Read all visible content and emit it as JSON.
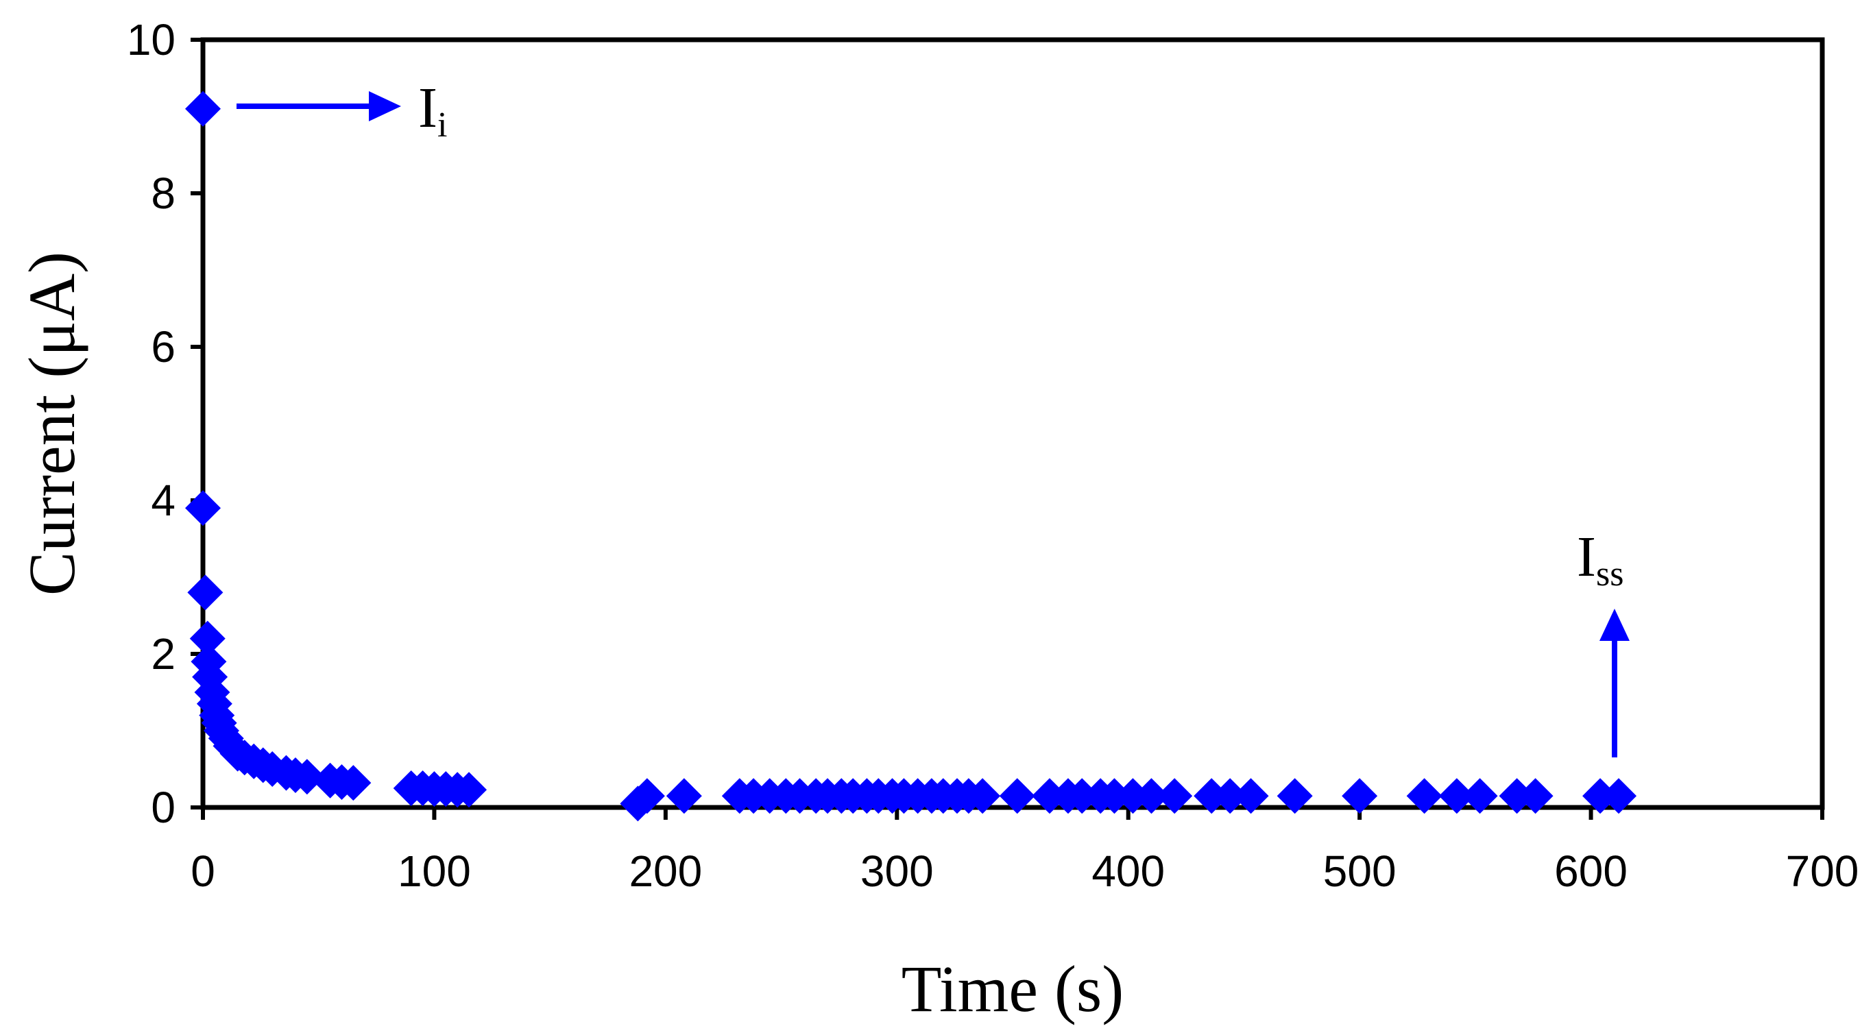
{
  "chart_data": {
    "type": "scatter",
    "xlabel": "Time (s)",
    "ylabel": "Current (μA)",
    "xlim": [
      0,
      700
    ],
    "ylim": [
      0,
      10
    ],
    "x_ticks": [
      "0",
      "100",
      "200",
      "300",
      "400",
      "500",
      "600",
      "700"
    ],
    "y_ticks": [
      "0",
      "2",
      "4",
      "6",
      "8",
      "10"
    ],
    "grid": false,
    "legend": "none",
    "marker": "diamond",
    "color": "#0000ff",
    "series": [
      {
        "points": [
          [
            0,
            9.1
          ],
          [
            0,
            3.9
          ],
          [
            1,
            2.8
          ],
          [
            2,
            2.2
          ],
          [
            2.5,
            1.9
          ],
          [
            3,
            1.7
          ],
          [
            4,
            1.5
          ],
          [
            5,
            1.35
          ],
          [
            6,
            1.2
          ],
          [
            7,
            1.1
          ],
          [
            8,
            1.0
          ],
          [
            10,
            0.9
          ],
          [
            12,
            0.8
          ],
          [
            15,
            0.7
          ],
          [
            18,
            0.65
          ],
          [
            22,
            0.6
          ],
          [
            26,
            0.55
          ],
          [
            30,
            0.5
          ],
          [
            36,
            0.45
          ],
          [
            40,
            0.42
          ],
          [
            45,
            0.4
          ],
          [
            55,
            0.35
          ],
          [
            60,
            0.33
          ],
          [
            65,
            0.32
          ],
          [
            90,
            0.25
          ],
          [
            95,
            0.25
          ],
          [
            100,
            0.24
          ],
          [
            105,
            0.24
          ],
          [
            110,
            0.23
          ],
          [
            115,
            0.23
          ],
          [
            188,
            0.05
          ],
          [
            192,
            0.15
          ],
          [
            208,
            0.15
          ],
          [
            232,
            0.15
          ],
          [
            238,
            0.15
          ],
          [
            245,
            0.15
          ],
          [
            252,
            0.15
          ],
          [
            258,
            0.15
          ],
          [
            265,
            0.15
          ],
          [
            270,
            0.15
          ],
          [
            276,
            0.15
          ],
          [
            281,
            0.15
          ],
          [
            287,
            0.15
          ],
          [
            292,
            0.15
          ],
          [
            298,
            0.15
          ],
          [
            303,
            0.15
          ],
          [
            309,
            0.15
          ],
          [
            315,
            0.15
          ],
          [
            320,
            0.15
          ],
          [
            326,
            0.15
          ],
          [
            331,
            0.15
          ],
          [
            337,
            0.15
          ],
          [
            352,
            0.15
          ],
          [
            366,
            0.15
          ],
          [
            374,
            0.15
          ],
          [
            380,
            0.15
          ],
          [
            388,
            0.15
          ],
          [
            394,
            0.15
          ],
          [
            402,
            0.15
          ],
          [
            410,
            0.15
          ],
          [
            420,
            0.15
          ],
          [
            436,
            0.15
          ],
          [
            444,
            0.15
          ],
          [
            453,
            0.15
          ],
          [
            472,
            0.15
          ],
          [
            500,
            0.15
          ],
          [
            528,
            0.15
          ],
          [
            542,
            0.15
          ],
          [
            552,
            0.15
          ],
          [
            568,
            0.15
          ],
          [
            576,
            0.15
          ],
          [
            604,
            0.15
          ],
          [
            612,
            0.15
          ]
        ]
      }
    ],
    "annotations": [
      {
        "label": "I",
        "subscript": "i",
        "arrow": "right",
        "points_to": [
          0,
          9.1
        ]
      },
      {
        "label": "I",
        "subscript": "ss",
        "arrow": "up",
        "points_to": [
          608,
          0.15
        ]
      }
    ]
  }
}
